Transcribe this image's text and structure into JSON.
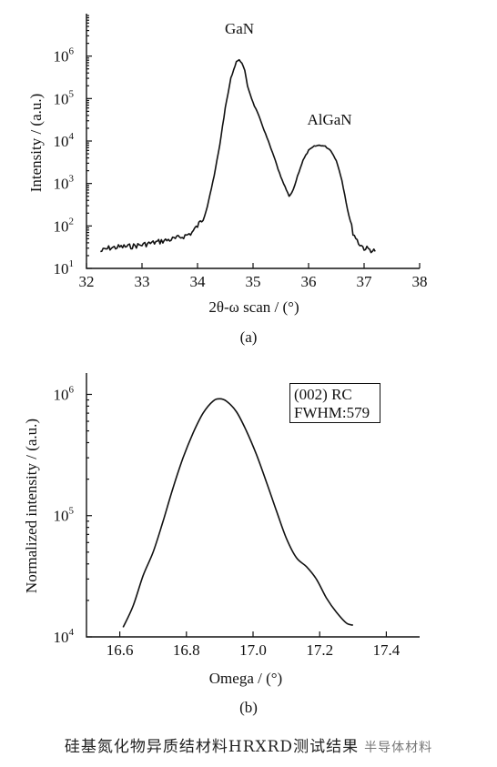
{
  "chart_data": [
    {
      "type": "line",
      "panel_label": "(a)",
      "xlabel": "2θ-ω scan / (°)",
      "ylabel": "Intensity / (a.u.)",
      "xlim": [
        32,
        38
      ],
      "ylim": [
        10,
        10000000
      ],
      "yscale": "log",
      "x_ticks": [
        "32",
        "33",
        "34",
        "35",
        "36",
        "37",
        "38"
      ],
      "y_ticks": [
        {
          "base": "10",
          "exp": "1"
        },
        {
          "base": "10",
          "exp": "2"
        },
        {
          "base": "10",
          "exp": "3"
        },
        {
          "base": "10",
          "exp": "4"
        },
        {
          "base": "10",
          "exp": "5"
        },
        {
          "base": "10",
          "exp": "6"
        }
      ],
      "annotations": [
        "GaN",
        "AlGaN"
      ],
      "series": [
        {
          "x": [
            32.25,
            32.4,
            32.6,
            32.8,
            33.0,
            33.2,
            33.4,
            33.6,
            33.8,
            33.9,
            34.0,
            34.1,
            34.2,
            34.3,
            34.4,
            34.5,
            34.6,
            34.7,
            34.75,
            34.8,
            34.85,
            34.9,
            35.0,
            35.1,
            35.2,
            35.3,
            35.4,
            35.5,
            35.6,
            35.65,
            35.7,
            35.75,
            35.8,
            35.9,
            36.0,
            36.1,
            36.2,
            36.3,
            36.4,
            36.5,
            36.6,
            36.7,
            36.8,
            36.9,
            37.0,
            37.1,
            37.2
          ],
          "y": [
            25,
            30,
            32,
            33,
            36,
            40,
            45,
            50,
            60,
            70,
            100,
            150,
            400,
            1500,
            8000,
            60000,
            300000,
            750000,
            800000,
            700000,
            450000,
            200000,
            80000,
            40000,
            18000,
            8000,
            3500,
            1400,
            700,
            500,
            600,
            900,
            1500,
            3500,
            6000,
            7500,
            8000,
            7500,
            6000,
            3500,
            1200,
            250,
            70,
            40,
            30,
            28,
            25
          ]
        }
      ]
    },
    {
      "type": "line",
      "panel_label": "(b)",
      "xlabel": "Omega / (°)",
      "ylabel": "Normalized intensity / (a.u.)",
      "xlim": [
        16.5,
        17.5
      ],
      "ylim": [
        10000,
        1500000
      ],
      "yscale": "log",
      "x_ticks": [
        "16.6",
        "16.8",
        "17.0",
        "17.2",
        "17.4"
      ],
      "y_ticks": [
        {
          "base": "10",
          "exp": "4"
        },
        {
          "base": "10",
          "exp": "5"
        },
        {
          "base": "10",
          "exp": "6"
        }
      ],
      "legend_lines": [
        "(002) RC",
        "FWHM:579"
      ],
      "series": [
        {
          "x": [
            16.61,
            16.64,
            16.67,
            16.7,
            16.73,
            16.76,
            16.79,
            16.82,
            16.85,
            16.88,
            16.9,
            16.92,
            16.95,
            16.98,
            17.01,
            17.04,
            17.07,
            17.1,
            17.13,
            17.16,
            17.19,
            17.22,
            17.25,
            17.28,
            17.3
          ],
          "y": [
            12000,
            18000,
            32000,
            50000,
            90000,
            170000,
            300000,
            480000,
            700000,
            880000,
            920000,
            880000,
            720000,
            500000,
            320000,
            190000,
            110000,
            65000,
            45000,
            38000,
            30000,
            21000,
            16000,
            13000,
            12500
          ]
        }
      ]
    }
  ],
  "caption": "硅基氮化物异质结材料HRXRD测试结果",
  "watermark": "半导体材料"
}
